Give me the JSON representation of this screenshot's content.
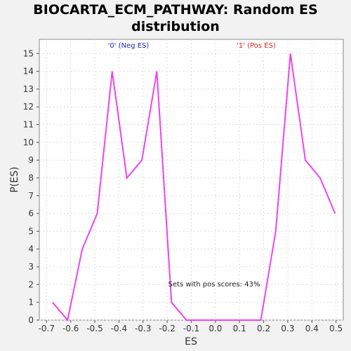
{
  "chart_data": {
    "type": "line",
    "title_line1": "BIOCARTA_ECM_PATHWAY: Random ES",
    "title_line2": "distribution",
    "xlabel": "ES",
    "ylabel": "P(ES)",
    "xlim": [
      -0.73,
      0.53
    ],
    "ylim": [
      0,
      15.8
    ],
    "x_ticks": [
      -0.7,
      -0.6,
      -0.5,
      -0.4,
      -0.3,
      -0.2,
      -0.1,
      0.0,
      0.1,
      0.2,
      0.3,
      0.4,
      0.5
    ],
    "x_tick_labels": [
      "-0.7",
      "-0.6",
      "-0.5",
      "-0.4",
      "-0.3",
      "-0.2",
      "-0.1",
      "0.0",
      "0.1",
      "0.2",
      "0.3",
      "0.4",
      "0.5"
    ],
    "y_ticks": [
      0,
      1,
      2,
      3,
      4,
      5,
      6,
      7,
      8,
      9,
      10,
      11,
      12,
      13,
      14,
      15
    ],
    "y_tick_labels": [
      "0",
      "1",
      "2",
      "3",
      "4",
      "5",
      "6",
      "7",
      "8",
      "9",
      "10",
      "11",
      "12",
      "13",
      "14",
      "15"
    ],
    "grid": true,
    "series": [
      {
        "color": "#ee44ee",
        "x": [
          -0.675,
          -0.613,
          -0.552,
          -0.49,
          -0.428,
          -0.367,
          -0.305,
          -0.243,
          -0.182,
          -0.12,
          -0.059,
          0.003,
          0.065,
          0.126,
          0.188,
          0.25,
          0.311,
          0.373,
          0.434,
          0.496
        ],
        "y": [
          1,
          0,
          4,
          6,
          14,
          8,
          9,
          14,
          1,
          0,
          0,
          0,
          0,
          0,
          0,
          5,
          15,
          9,
          8,
          6
        ]
      }
    ],
    "annotations": {
      "neg_label": "'0' (Neg ES)",
      "neg_color": "#2222cc",
      "pos_label": "'1' (Pos ES)",
      "pos_color": "#dd2222",
      "pos_scores": "Sets with pos scores: 43%"
    }
  }
}
